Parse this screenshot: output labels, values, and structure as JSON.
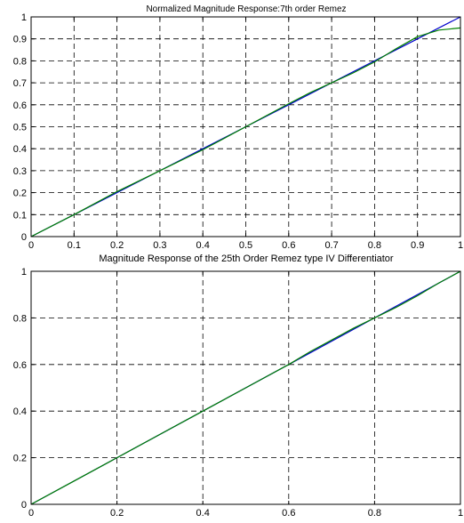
{
  "chart_data": [
    {
      "type": "line",
      "title": "Normalized Magnitude Response:7th order Remez",
      "xlim": [
        0,
        1
      ],
      "ylim": [
        0,
        1
      ],
      "grid": true,
      "xticks": [
        "0",
        "0.1",
        "0.2",
        "0.3",
        "0.4",
        "0.5",
        "0.6",
        "0.7",
        "0.8",
        "0.9",
        "1"
      ],
      "yticks": [
        "0",
        "0.1",
        "0.2",
        "0.3",
        "0.4",
        "0.5",
        "0.6",
        "0.7",
        "0.8",
        "0.9",
        "1"
      ],
      "series": [
        {
          "color": "#0000cc",
          "x": [
            0,
            0.1,
            0.2,
            0.3,
            0.4,
            0.5,
            0.6,
            0.7,
            0.8,
            0.9,
            1.0
          ],
          "y": [
            0,
            0.1,
            0.2,
            0.3,
            0.4,
            0.5,
            0.6,
            0.7,
            0.8,
            0.9,
            1.0
          ]
        },
        {
          "color": "#008000",
          "x": [
            0,
            0.1,
            0.2,
            0.3,
            0.4,
            0.5,
            0.6,
            0.65,
            0.7,
            0.75,
            0.8,
            0.85,
            0.9,
            0.95,
            1.0
          ],
          "y": [
            0,
            0.1,
            0.205,
            0.3,
            0.395,
            0.5,
            0.605,
            0.655,
            0.7,
            0.745,
            0.795,
            0.855,
            0.91,
            0.94,
            0.95
          ]
        }
      ]
    },
    {
      "type": "line",
      "title": "Magnitude Response of the 25th Order Remez type IV Differentiator",
      "xlim": [
        0,
        1
      ],
      "ylim": [
        0,
        1
      ],
      "grid": true,
      "xticks": [
        "0",
        "0.2",
        "0.4",
        "0.6",
        "0.8",
        "1"
      ],
      "yticks": [
        "0",
        "0.2",
        "0.4",
        "0.6",
        "0.8",
        "1"
      ],
      "series": [
        {
          "color": "#0000cc",
          "x": [
            0,
            0.2,
            0.4,
            0.6,
            0.8,
            1.0
          ],
          "y": [
            0,
            0.2,
            0.4,
            0.6,
            0.8,
            1.0
          ]
        },
        {
          "color": "#008000",
          "x": [
            0,
            0.1,
            0.2,
            0.3,
            0.4,
            0.5,
            0.55,
            0.6,
            0.65,
            0.7,
            0.75,
            0.8,
            0.85,
            0.9,
            0.95,
            1.0
          ],
          "y": [
            0,
            0.1,
            0.2,
            0.3,
            0.4,
            0.5,
            0.55,
            0.6,
            0.655,
            0.705,
            0.755,
            0.8,
            0.845,
            0.895,
            0.95,
            1.0
          ]
        }
      ]
    }
  ]
}
